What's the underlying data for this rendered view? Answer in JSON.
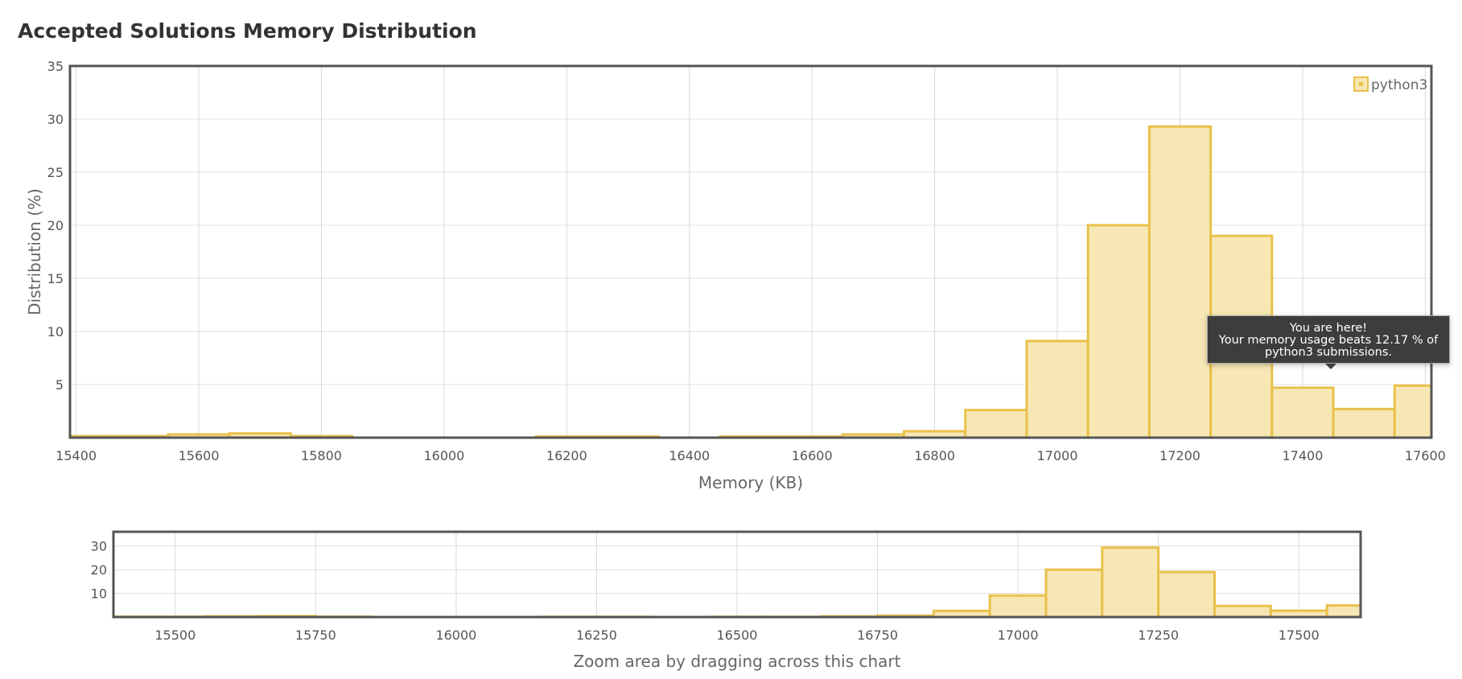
{
  "chart_data": [
    {
      "type": "bar",
      "id": "main",
      "title": "Accepted Solutions Memory Distribution",
      "xlabel": "Memory (KB)",
      "ylabel": "Distribution (%)",
      "xlim": [
        15390,
        17610
      ],
      "ylim": [
        0,
        35
      ],
      "xticks": [
        15400,
        15600,
        15800,
        16000,
        16200,
        16400,
        16600,
        16800,
        17000,
        17200,
        17400,
        17600
      ],
      "yticks": [
        5,
        10,
        15,
        20,
        25,
        30,
        35
      ],
      "bin_width": 100,
      "grid": true,
      "legend_position": "top-right",
      "series": [
        {
          "name": "python3",
          "color": "#e9c04a",
          "fill": "#f7e6b1",
          "x": [
            15400,
            15500,
            15600,
            15700,
            15800,
            16200,
            16300,
            16500,
            16600,
            16700,
            16800,
            16900,
            17000,
            17100,
            17200,
            17300,
            17400,
            17500,
            17600
          ],
          "values": [
            0.15,
            0.15,
            0.3,
            0.4,
            0.15,
            0.1,
            0.1,
            0.1,
            0.1,
            0.3,
            0.6,
            2.6,
            9.1,
            20,
            29.3,
            19,
            4.7,
            2.7,
            4.9
          ]
        }
      ]
    },
    {
      "type": "bar",
      "id": "navigator",
      "xlabel": "Zoom area by dragging across this chart",
      "xlim": [
        15390,
        17610
      ],
      "ylim": [
        0,
        36
      ],
      "xticks": [
        15500,
        15750,
        16000,
        16250,
        16500,
        16750,
        17000,
        17250,
        17500
      ],
      "yticks": [
        10,
        20,
        30
      ],
      "grid": true,
      "series": [
        {
          "name": "python3",
          "color": "#e9c04a",
          "fill": "#f7e6b1",
          "x": [
            15400,
            15500,
            15600,
            15700,
            15800,
            16200,
            16300,
            16500,
            16600,
            16700,
            16800,
            16900,
            17000,
            17100,
            17200,
            17300,
            17400,
            17500,
            17600
          ],
          "values": [
            0.15,
            0.15,
            0.3,
            0.4,
            0.15,
            0.1,
            0.1,
            0.1,
            0.1,
            0.3,
            0.6,
            2.6,
            9.1,
            20,
            29.3,
            19,
            4.7,
            2.7,
            4.9
          ]
        }
      ]
    }
  ],
  "tooltip": {
    "line1": "You are here!",
    "line2": "Your memory usage beats 12.17 % of",
    "line3": "python3 submissions."
  }
}
